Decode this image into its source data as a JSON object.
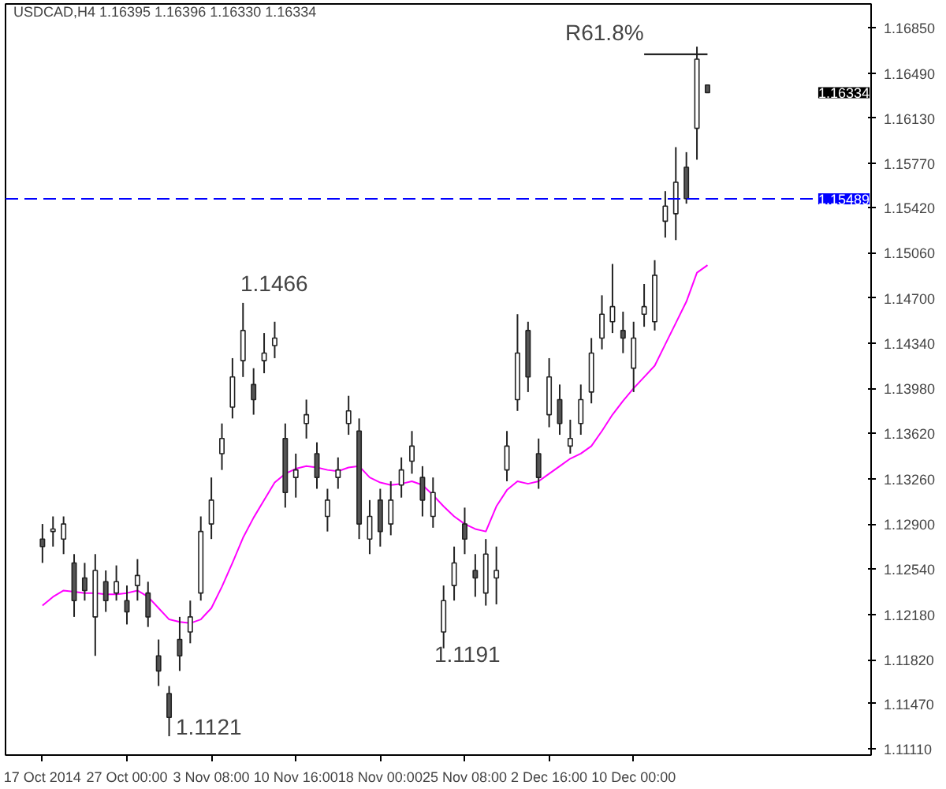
{
  "chart_data": {
    "type": "candlestick",
    "title": "USDCAD,H4  1.16395 1.16396 1.16330 1.16334",
    "categories": [
      "17 Oct 2014",
      null,
      null,
      null,
      null,
      null,
      null,
      null,
      "27 Oct 00:00",
      null,
      null,
      null,
      null,
      null,
      null,
      null,
      "3 Nov 08:00",
      null,
      null,
      null,
      null,
      null,
      null,
      null,
      "10 Nov 16:00",
      null,
      null,
      null,
      null,
      null,
      null,
      null,
      "18 Nov 00:00",
      null,
      null,
      null,
      null,
      null,
      null,
      null,
      "25 Nov 08:00",
      null,
      null,
      null,
      null,
      null,
      null,
      null,
      "2 Dec 16:00",
      null,
      null,
      null,
      null,
      null,
      null,
      null,
      "10 Dec 00:00",
      null,
      null,
      null,
      null,
      null,
      null,
      null
    ],
    "ohlc": [
      [
        1.1278,
        1.129,
        1.1259,
        1.1272
      ],
      [
        1.1284,
        1.1296,
        1.1272,
        1.1286
      ],
      [
        1.1278,
        1.1296,
        1.1266,
        1.129
      ],
      [
        1.1259,
        1.1266,
        1.1216,
        1.1229
      ],
      [
        1.1247,
        1.1259,
        1.1229,
        1.1237
      ],
      [
        1.1216,
        1.1266,
        1.1185,
        1.1253
      ],
      [
        1.1244,
        1.1253,
        1.122,
        1.1229
      ],
      [
        1.1235,
        1.1257,
        1.1229,
        1.1244
      ],
      [
        1.1229,
        1.1241,
        1.121,
        1.122
      ],
      [
        1.1241,
        1.1262,
        1.1229,
        1.1249
      ],
      [
        1.1235,
        1.1244,
        1.1208,
        1.1216
      ],
      [
        1.1185,
        1.1198,
        1.1161,
        1.1173
      ],
      [
        1.1155,
        1.1161,
        1.1121,
        1.1136
      ],
      [
        1.1198,
        1.1216,
        1.1173,
        1.1185
      ],
      [
        1.1204,
        1.1229,
        1.1195,
        1.1216
      ],
      [
        1.1235,
        1.1296,
        1.1229,
        1.1284
      ],
      [
        1.129,
        1.1327,
        1.1278,
        1.1309
      ],
      [
        1.1346,
        1.137,
        1.1333,
        1.1358
      ],
      [
        1.1383,
        1.1422,
        1.1374,
        1.1407
      ],
      [
        1.142,
        1.1466,
        1.1407,
        1.1444
      ],
      [
        1.1401,
        1.1414,
        1.1377,
        1.1389
      ],
      [
        1.142,
        1.1442,
        1.141,
        1.1426
      ],
      [
        1.1432,
        1.1451,
        1.1422,
        1.1438
      ],
      [
        1.1358,
        1.137,
        1.1303,
        1.1315
      ],
      [
        1.1327,
        1.1346,
        1.1311,
        1.1333
      ],
      [
        1.137,
        1.1389,
        1.1358,
        1.1377
      ],
      [
        1.1346,
        1.1355,
        1.1318,
        1.1327
      ],
      [
        1.1296,
        1.1318,
        1.1284,
        1.1309
      ],
      [
        1.1327,
        1.1343,
        1.1318,
        1.1333
      ],
      [
        1.137,
        1.1392,
        1.1361,
        1.138
      ],
      [
        1.1364,
        1.1374,
        1.1278,
        1.129
      ],
      [
        1.1278,
        1.1309,
        1.1266,
        1.1296
      ],
      [
        1.1309,
        1.1318,
        1.1272,
        1.1284
      ],
      [
        1.129,
        1.1324,
        1.1281,
        1.1309
      ],
      [
        1.1321,
        1.1343,
        1.1311,
        1.1333
      ],
      [
        1.134,
        1.1364,
        1.133,
        1.1352
      ],
      [
        1.1327,
        1.1336,
        1.1296,
        1.1309
      ],
      [
        1.1296,
        1.1327,
        1.1287,
        1.1315
      ],
      [
        1.1204,
        1.1241,
        1.1191,
        1.1229
      ],
      [
        1.1241,
        1.1272,
        1.1229,
        1.1259
      ],
      [
        1.129,
        1.1303,
        1.1266,
        1.1278
      ],
      [
        1.1253,
        1.1266,
        1.1232,
        1.1247
      ],
      [
        1.1235,
        1.1278,
        1.1225,
        1.1266
      ],
      [
        1.1247,
        1.1272,
        1.1226,
        1.1253
      ],
      [
        1.1333,
        1.1364,
        1.1324,
        1.1352
      ],
      [
        1.1389,
        1.1457,
        1.138,
        1.1426
      ],
      [
        1.1444,
        1.1451,
        1.1395,
        1.1407
      ],
      [
        1.1346,
        1.1358,
        1.1318,
        1.1327
      ],
      [
        1.1377,
        1.1422,
        1.1367,
        1.1407
      ],
      [
        1.1389,
        1.1401,
        1.1361,
        1.137
      ],
      [
        1.1352,
        1.1373,
        1.1346,
        1.1358
      ],
      [
        1.137,
        1.1401,
        1.1361,
        1.1389
      ],
      [
        1.1395,
        1.1438,
        1.1386,
        1.1426
      ],
      [
        1.1438,
        1.1472,
        1.1429,
        1.1457
      ],
      [
        1.1451,
        1.1497,
        1.1442,
        1.1463
      ],
      [
        1.1444,
        1.1459,
        1.1426,
        1.1438
      ],
      [
        1.1414,
        1.1451,
        1.1395,
        1.1438
      ],
      [
        1.1457,
        1.1481,
        1.1447,
        1.1463
      ],
      [
        1.1451,
        1.15,
        1.1444,
        1.1488
      ],
      [
        1.1531,
        1.1555,
        1.1518,
        1.1543
      ],
      [
        1.1537,
        1.159,
        1.1516,
        1.1562
      ],
      [
        1.1574,
        1.1586,
        1.1545,
        1.1549
      ],
      [
        1.1605,
        1.167,
        1.158,
        1.166
      ],
      [
        1.16395,
        1.16396,
        1.1633,
        1.16334
      ]
    ],
    "series": [
      {
        "type": "line",
        "color": "#ff00ff",
        "values": [
          1.1225,
          1.1232,
          1.1237,
          1.1236,
          1.1235,
          1.1235,
          1.1234,
          1.1234,
          1.1235,
          1.1237,
          1.1232,
          1.1223,
          1.1214,
          1.1212,
          1.1211,
          1.1214,
          1.1223,
          1.124,
          1.1259,
          1.1279,
          1.1295,
          1.1309,
          1.1323,
          1.133,
          1.1334,
          1.1336,
          1.1335,
          1.1333,
          1.1332,
          1.1335,
          1.1336,
          1.1327,
          1.1323,
          1.1321,
          1.1322,
          1.1324,
          1.1321,
          1.1313,
          1.1304,
          1.1296,
          1.129,
          1.1286,
          1.1284,
          1.1304,
          1.1317,
          1.1324,
          1.1322,
          1.1324,
          1.133,
          1.1336,
          1.1342,
          1.1346,
          1.1352,
          1.1364,
          1.1377,
          1.1388,
          1.1398,
          1.1407,
          1.1416,
          1.1433,
          1.145,
          1.1467,
          1.149,
          1.1496
        ]
      },
      {
        "type": "line",
        "color": "#000000",
        "values": [
          null,
          null,
          null,
          null,
          null,
          null,
          null,
          null,
          null,
          null,
          null,
          null,
          null,
          null,
          null,
          null,
          null,
          null,
          null,
          null,
          null,
          null,
          null,
          null,
          null,
          null,
          null,
          null,
          null,
          null,
          null,
          null,
          null,
          null,
          null,
          null,
          null,
          null,
          null,
          null,
          null,
          null,
          null,
          null,
          null,
          null,
          null,
          null,
          null,
          null,
          null,
          null,
          null,
          null,
          null,
          null,
          null,
          1.1664,
          1.1664,
          1.1664,
          1.1664,
          1.1664,
          1.1664,
          1.1664
        ]
      }
    ],
    "ref_lines": [
      {
        "axis": "y",
        "value": 1.15489,
        "label": "1.15489",
        "color": "#0000ff",
        "line_style": "dashed"
      }
    ],
    "annotations": [
      "1.1466",
      "1.1121",
      "1.1191",
      "R61.8%",
      "1.16334"
    ],
    "ylim": [
      1.1106,
      1.1704
    ],
    "yticks": [
      {
        "value": 1.1685,
        "label": "1.16850"
      },
      {
        "value": 1.1649,
        "label": "1.16490"
      },
      {
        "value": 1.1613,
        "label": "1.16130"
      },
      {
        "value": 1.1577,
        "label": "1.15770"
      },
      {
        "value": 1.1542,
        "label": "1.15420"
      },
      {
        "value": 1.1506,
        "label": "1.15060"
      },
      {
        "value": 1.147,
        "label": "1.14700"
      },
      {
        "value": 1.1434,
        "label": "1.14340"
      },
      {
        "value": 1.1398,
        "label": "1.13980"
      },
      {
        "value": 1.1362,
        "label": "1.13620"
      },
      {
        "value": 1.1326,
        "label": "1.13260"
      },
      {
        "value": 1.129,
        "label": "1.12900"
      },
      {
        "value": 1.1254,
        "label": "1.12540"
      },
      {
        "value": 1.1218,
        "label": "1.12180"
      },
      {
        "value": 1.1182,
        "label": "1.11820"
      },
      {
        "value": 1.1147,
        "label": "1.11470"
      },
      {
        "value": 1.1111,
        "label": "1.11110"
      }
    ],
    "grid": false
  }
}
